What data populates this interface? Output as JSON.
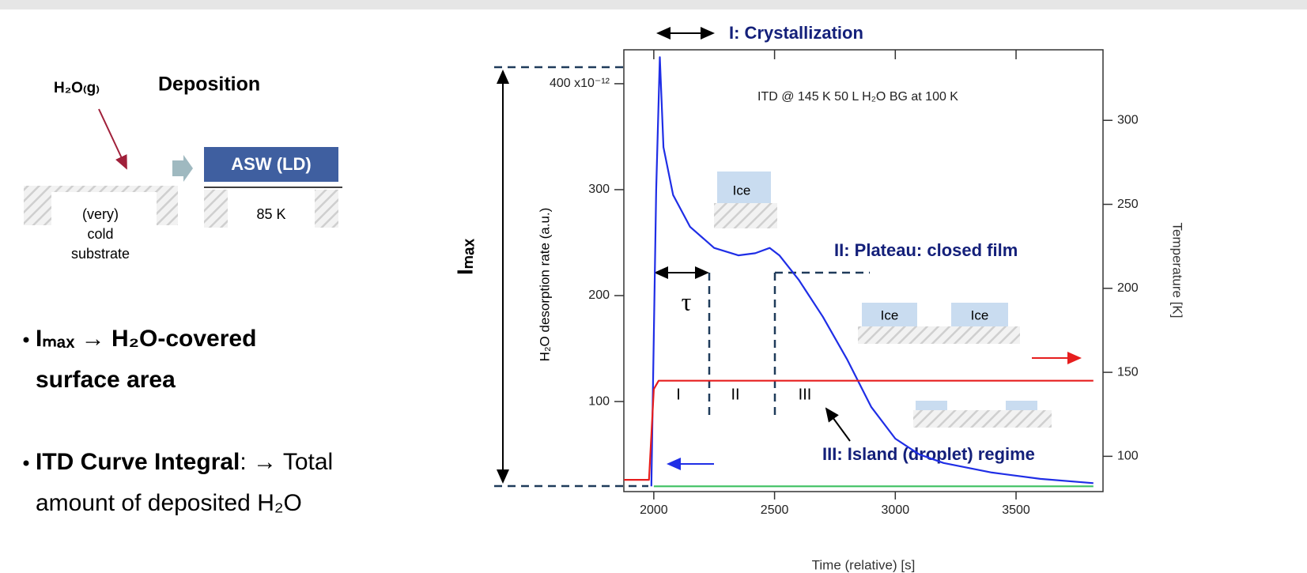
{
  "chart_data": {
    "type": "line",
    "x_label": "Time (relative) [s]",
    "y_label": "H₂O desorption rate (a.u.)",
    "y2_label": "Temperature [K]",
    "xlim": [
      1876,
      3860
    ],
    "xticks": [
      2000,
      2500,
      3000,
      3500
    ],
    "ylim": [
      15,
      432
    ],
    "yticks": [
      100,
      200,
      300,
      {
        "value": 400,
        "label": "400 x10⁻¹²"
      }
    ],
    "y2lim": [
      79,
      342
    ],
    "y2ticks": [
      100,
      150,
      200,
      250,
      300
    ],
    "series": [
      {
        "color": "#1f2ee6",
        "x": [
          1990,
          2010,
          2025,
          2040,
          2080,
          2150,
          2250,
          2350,
          2420,
          2480,
          2520,
          2600,
          2700,
          2800,
          2900,
          3000,
          3100,
          3200,
          3400,
          3600,
          3820
        ],
        "values": [
          20,
          300,
          425,
          340,
          295,
          265,
          245,
          238,
          240,
          245,
          238,
          215,
          180,
          140,
          95,
          65,
          50,
          42,
          33,
          27,
          23
        ]
      },
      {
        "color": "#e61e1e",
        "axis": "y2",
        "x": [
          1876,
          1980,
          2000,
          2020,
          3820
        ],
        "values": [
          86,
          86,
          140,
          145,
          145
        ]
      },
      {
        "color": "#3cc060",
        "x": [
          2000,
          3820
        ],
        "values": [
          20,
          20
        ]
      }
    ],
    "annotations": {
      "imax": "Iₘₐₓ",
      "crystallization": "I: Crystallization",
      "conditions": "ITD @ 145 K    50 L H₂O BG at 100 K",
      "plateau": "II: Plateau: closed film",
      "island": "III: Island (droplet) regime",
      "tau": "τ",
      "regimes": [
        "I",
        "II",
        "III"
      ],
      "ice": [
        "Ice",
        "Ice",
        "Ice"
      ]
    }
  },
  "deposition": {
    "gas": "H₂O₍g₎",
    "title": "Deposition",
    "substrate": [
      "(very)",
      "cold",
      "substrate"
    ],
    "film": "ASW (LD)",
    "film_temp": "85 K"
  },
  "bullets": [
    {
      "lines": [
        "Iₘₐₓ → H₂O-covered",
        "surface area"
      ]
    },
    {
      "bold": "ITD Curve Integral",
      "rest": ": → Total",
      "line2": "amount of deposited H₂O"
    }
  ]
}
